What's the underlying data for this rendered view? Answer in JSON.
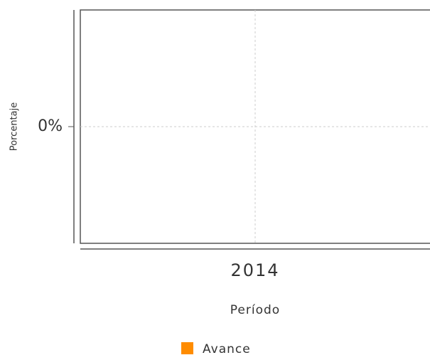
{
  "chart_data": {
    "type": "bar",
    "categories": [
      "2014"
    ],
    "series": [
      {
        "name": "Avance",
        "color": "#ff8c00",
        "values": [
          0
        ]
      }
    ],
    "ylim": [
      -1,
      1
    ],
    "yticks": [
      {
        "value": 0,
        "label": "0%"
      }
    ],
    "grid": true,
    "x_label": "Período",
    "y_label": "Porcentaje",
    "legend": "bottom"
  }
}
